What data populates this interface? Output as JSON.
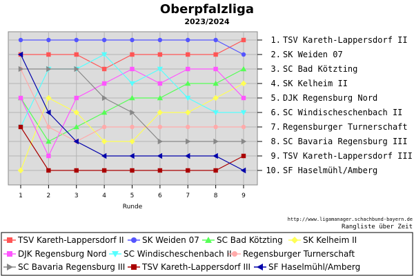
{
  "chart_data": {
    "type": "line",
    "title": "Oberpfalzliga",
    "subtitle": "2023/2024",
    "xlabel": "Runde",
    "ylabel": "",
    "x": [
      1,
      2,
      3,
      4,
      5,
      6,
      7,
      8,
      9
    ],
    "ylim": [
      1,
      10
    ],
    "y_inverted": true,
    "grid": true,
    "source_url": "http://www.ligamanager.schachbund-bayern.de",
    "caption": "Rangliste über Zeit",
    "legend_position": "bottom",
    "final_standings": [
      "1. TSV Kareth-Lappersdorf II",
      "2. SK Weiden 07",
      "3. SC Bad Kötzting",
      "4. SK Kelheim II",
      "5. DJK Regensburg Nord",
      "6. SC Windischeschenbach II",
      "7. Regensburger Turnerschaft",
      "8. SC Bavaria Regensburg III",
      "9. TSV Kareth-Lappersdorf III",
      "10. SF Haselmühl/Amberg"
    ],
    "series": [
      {
        "name": "TSV Kareth-Lappersdorf II",
        "color": "#ff5555",
        "marker": "square",
        "values": [
          2,
          2,
          2,
          3,
          2,
          2,
          2,
          2,
          1
        ]
      },
      {
        "name": "SK Weiden 07",
        "color": "#5555ff",
        "marker": "circle",
        "values": [
          1,
          1,
          1,
          1,
          1,
          1,
          1,
          1,
          2
        ]
      },
      {
        "name": "SC Bad Kötzting",
        "color": "#55ff55",
        "marker": "triangle-up",
        "values": [
          5,
          8,
          7,
          6,
          5,
          5,
          4,
          4,
          3
        ]
      },
      {
        "name": "SK Kelheim II",
        "color": "#ffff55",
        "marker": "diamond",
        "values": [
          10,
          5,
          6,
          8,
          8,
          6,
          6,
          5,
          4
        ]
      },
      {
        "name": "DJK Regensburg Nord",
        "color": "#ff55ff",
        "marker": "square",
        "values": [
          5,
          9,
          5,
          4,
          3,
          4,
          3,
          3,
          5
        ]
      },
      {
        "name": "SC Windischeschenbach II",
        "color": "#55ffff",
        "marker": "triangle-down",
        "values": [
          7,
          3,
          3,
          2,
          4,
          3,
          5,
          6,
          6
        ]
      },
      {
        "name": "Regensburger Turnerschaft",
        "color": "#ffaaaa",
        "marker": "circle",
        "values": [
          3,
          7,
          8,
          7,
          7,
          7,
          7,
          7,
          7
        ]
      },
      {
        "name": "SC Bavaria Regensburg III",
        "color": "#888888",
        "marker": "triangle-right",
        "values": [
          3,
          3,
          3,
          5,
          6,
          8,
          8,
          8,
          8
        ]
      },
      {
        "name": "TSV Kareth-Lappersdorf III",
        "color": "#aa0000",
        "marker": "square",
        "values": [
          7,
          10,
          10,
          10,
          10,
          10,
          10,
          10,
          9
        ]
      },
      {
        "name": "SF Haselmühl/Amberg",
        "color": "#0000aa",
        "marker": "triangle-left",
        "values": [
          2,
          6,
          8,
          9,
          9,
          9,
          9,
          9,
          10
        ]
      }
    ]
  }
}
